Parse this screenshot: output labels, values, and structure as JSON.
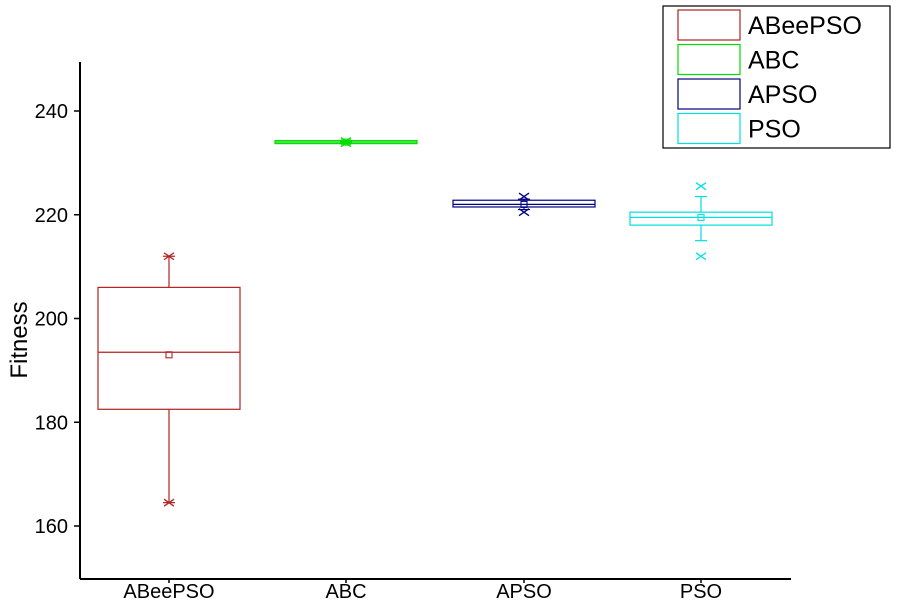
{
  "chart_data": {
    "type": "box",
    "title": "",
    "xlabel": "",
    "ylabel": "Fitness",
    "ylim": [
      150,
      250
    ],
    "yticks": [
      160,
      180,
      200,
      220,
      240
    ],
    "grid": false,
    "legend_position": "top-right",
    "categories": [
      "ABeePSO",
      "ABC",
      "APSO",
      "PSO"
    ],
    "series": [
      {
        "name": "ABeePSO",
        "color": "#b22222",
        "whisker_low": 164.5,
        "q1": 182.5,
        "median": 193.5,
        "mean": 193,
        "q3": 206,
        "whisker_high": 212,
        "outliers": [
          164.5,
          212
        ]
      },
      {
        "name": "ABC",
        "color": "#00dd00",
        "whisker_low": 233.8,
        "q1": 234,
        "median": 234,
        "mean": 234,
        "q3": 234,
        "whisker_high": 234.2,
        "outliers": [
          233.8,
          234.2
        ]
      },
      {
        "name": "APSO",
        "color": "#000080",
        "whisker_low": 221,
        "q1": 221.5,
        "median": 222,
        "mean": 222,
        "q3": 222.8,
        "whisker_high": 223,
        "outliers": [
          220.5,
          223.5
        ]
      },
      {
        "name": "PSO",
        "color": "#00e0e0",
        "whisker_low": 215,
        "q1": 218,
        "median": 219.5,
        "mean": 219.5,
        "q3": 220.5,
        "whisker_high": 223.5,
        "outliers": [
          212,
          225.5
        ]
      }
    ]
  }
}
